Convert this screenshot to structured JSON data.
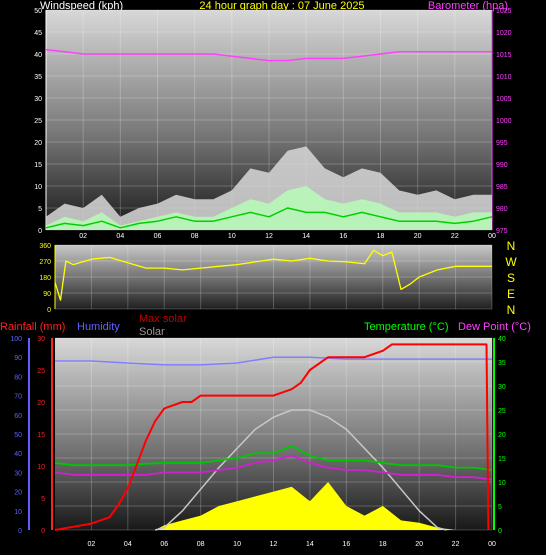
{
  "header": {
    "title": "24 hour graph day : 07 June 2025",
    "left_label": "Windspeed (kph)",
    "right_label": "Barometer (hpa)"
  },
  "colors": {
    "wind": "#ffffff",
    "gust": "#d8d8d8",
    "avg_wind": "#00d000",
    "barometer": "#ff40ff",
    "direction": "#ffff00",
    "rain": "#ff0000",
    "humidity": "#8080ff",
    "max_solar": "#c8c8c8",
    "solar": "#ffff00",
    "temperature": "#00c800",
    "dewpoint": "#d020d0",
    "axis_red": "#ff2020",
    "axis_blue": "#6060ff",
    "axis_green": "#00ff00"
  },
  "compass": {
    "letters": [
      "N",
      "W",
      "S",
      "E",
      "N"
    ]
  },
  "bottom_labels": {
    "rain": "Rainfall (mm)",
    "humidity": "Humidity",
    "max_solar": "Max solar",
    "solar": "Solar",
    "temperature": "Temperature (°C)",
    "dewpoint": "Dew Point (°C)"
  },
  "chart_data": [
    {
      "id": "wind_baro",
      "type": "line",
      "title": "24 hour graph day : 07 June 2025",
      "ylabel": "Windspeed (kph)",
      "y2label": "Barometer (hpa)",
      "ylim": [
        0,
        50
      ],
      "y2lim": [
        975,
        1025
      ],
      "yticks": [
        0,
        5,
        10,
        15,
        20,
        25,
        30,
        35,
        40,
        45,
        50
      ],
      "y2ticks": [
        975,
        980,
        985,
        990,
        995,
        1000,
        1005,
        1010,
        1015,
        1020,
        1025
      ],
      "xticks": [
        "02",
        "04",
        "06",
        "08",
        "10",
        "12",
        "14",
        "16",
        "18",
        "20",
        "22",
        "00"
      ],
      "grid": true,
      "series": [
        {
          "name": "Barometer",
          "axis": "right",
          "x": [
            0,
            1,
            2,
            3,
            4,
            5,
            6,
            7,
            8,
            9,
            10,
            11,
            12,
            13,
            14,
            15,
            16,
            17,
            18,
            19,
            20,
            21,
            22,
            23,
            24
          ],
          "values": [
            1016,
            1015.5,
            1015,
            1015,
            1015,
            1015,
            1015,
            1015,
            1015,
            1015,
            1014.5,
            1014,
            1013.5,
            1013.5,
            1014,
            1014,
            1014,
            1014.5,
            1015,
            1015.5,
            1015.5,
            1015.5,
            1015.5,
            1015.5,
            1015.5
          ]
        },
        {
          "name": "Gust",
          "axis": "left",
          "x": [
            0,
            1,
            2,
            3,
            4,
            5,
            6,
            7,
            8,
            9,
            10,
            11,
            12,
            13,
            14,
            15,
            16,
            17,
            18,
            19,
            20,
            21,
            22,
            23,
            24
          ],
          "values": [
            3,
            6,
            5,
            8,
            3,
            5,
            6,
            8,
            7,
            7,
            9,
            14,
            13,
            18,
            19,
            14,
            12,
            14,
            13,
            9,
            8,
            9,
            7,
            8,
            8
          ]
        },
        {
          "name": "Wind",
          "axis": "left",
          "x": [
            0,
            1,
            2,
            3,
            4,
            5,
            6,
            7,
            8,
            9,
            10,
            11,
            12,
            13,
            14,
            15,
            16,
            17,
            18,
            19,
            20,
            21,
            22,
            23,
            24
          ],
          "values": [
            1,
            3,
            2,
            4,
            1,
            2,
            3,
            4,
            3,
            3,
            5,
            7,
            6,
            9,
            10,
            7,
            6,
            7,
            6,
            4,
            4,
            4,
            3,
            4,
            4
          ]
        },
        {
          "name": "Average",
          "axis": "left",
          "x": [
            0,
            1,
            2,
            3,
            4,
            5,
            6,
            7,
            8,
            9,
            10,
            11,
            12,
            13,
            14,
            15,
            16,
            17,
            18,
            19,
            20,
            21,
            22,
            23,
            24
          ],
          "values": [
            0.5,
            1.5,
            1,
            2,
            0.5,
            1.5,
            2,
            3,
            2,
            2,
            3,
            4,
            3,
            5,
            4,
            4,
            3,
            4,
            3,
            2,
            2,
            2,
            1.5,
            2,
            3
          ]
        }
      ]
    },
    {
      "id": "direction",
      "type": "line",
      "ylim": [
        0,
        360
      ],
      "yticks": [
        0,
        90,
        180,
        270,
        360
      ],
      "grid": true,
      "series": [
        {
          "name": "Wind direction",
          "x": [
            0,
            0.3,
            0.6,
            1,
            2,
            3,
            4,
            5,
            6,
            7,
            8,
            9,
            10,
            11,
            12,
            13,
            14,
            15,
            16,
            17,
            17.5,
            18,
            18.5,
            19,
            19.5,
            20,
            21,
            22,
            23,
            24
          ],
          "values": [
            150,
            50,
            270,
            250,
            280,
            290,
            260,
            230,
            230,
            220,
            230,
            240,
            250,
            265,
            280,
            270,
            285,
            270,
            265,
            255,
            330,
            300,
            320,
            110,
            140,
            180,
            220,
            240,
            240,
            240
          ]
        }
      ]
    },
    {
      "id": "temp_rain_solar",
      "type": "line",
      "ylabel": "Rainfall (mm)",
      "y2label": "Temperature (°C)",
      "ylim": [
        0,
        30
      ],
      "yticks": [
        0,
        5,
        10,
        15,
        20,
        25,
        30
      ],
      "humidity_ticks": [
        0,
        10,
        20,
        30,
        40,
        50,
        60,
        70,
        80,
        90,
        100
      ],
      "y2lim": [
        0,
        40
      ],
      "y2ticks": [
        0,
        5,
        10,
        15,
        20,
        25,
        30,
        35,
        40
      ],
      "xticks": [
        "02",
        "04",
        "06",
        "08",
        "10",
        "12",
        "14",
        "16",
        "18",
        "20",
        "22",
        "00"
      ],
      "grid": true,
      "series": [
        {
          "name": "Rainfall",
          "axis": "rain",
          "x": [
            0,
            1,
            2,
            3,
            3.5,
            4,
            5,
            5.5,
            6,
            7,
            7.5,
            8,
            9,
            10,
            11,
            12,
            13,
            13.5,
            14,
            15,
            15.5,
            16,
            17,
            18,
            18.5,
            19,
            20,
            21,
            22,
            23,
            23.7,
            23.8
          ],
          "values": [
            0,
            0.5,
            1,
            2,
            4,
            6.5,
            14,
            17,
            19,
            20,
            20,
            21,
            21,
            21,
            21,
            21,
            22,
            23,
            25,
            27,
            27,
            27,
            27,
            28,
            29,
            29,
            29,
            29,
            29,
            29,
            29,
            0
          ]
        },
        {
          "name": "Humidity",
          "axis": "humidity",
          "x": [
            0,
            2,
            4,
            6,
            8,
            10,
            12,
            14,
            16,
            18,
            20,
            22,
            24
          ],
          "values": [
            88,
            88,
            87,
            86,
            86,
            87,
            90,
            90,
            89,
            89,
            89,
            89,
            89
          ]
        },
        {
          "name": "Max solar",
          "axis": "temp",
          "x": [
            5.5,
            6,
            7,
            8,
            9,
            10,
            11,
            12,
            13,
            14,
            15,
            16,
            17,
            18,
            19,
            20,
            21,
            21.5
          ],
          "values": [
            0,
            0.5,
            4,
            8.5,
            13,
            17,
            21,
            23.5,
            25,
            25,
            23.5,
            21,
            17,
            13,
            8.5,
            4,
            0.5,
            0
          ]
        },
        {
          "name": "Solar",
          "axis": "temp",
          "x": [
            0,
            5.5,
            6,
            7,
            8,
            9,
            10,
            11,
            12,
            13,
            14,
            15,
            16,
            17,
            18,
            19,
            20,
            21,
            22,
            24
          ],
          "values": [
            0,
            0,
            1,
            2,
            3,
            5,
            6,
            7,
            8,
            9,
            6,
            10,
            5,
            3,
            5,
            2,
            1.5,
            0.5,
            0,
            0
          ]
        },
        {
          "name": "Temperature",
          "axis": "temp",
          "x": [
            0,
            1,
            2,
            3,
            4,
            5,
            6,
            7,
            8,
            9,
            10,
            11,
            12,
            13,
            14,
            15,
            16,
            17,
            18,
            19,
            20,
            21,
            22,
            23,
            24
          ],
          "values": [
            14,
            13.5,
            13.5,
            13.5,
            13.5,
            13.8,
            14,
            14,
            14,
            14.5,
            15,
            16,
            16,
            17.5,
            15.5,
            14.5,
            14.5,
            14.5,
            14,
            13.5,
            13.5,
            13.5,
            13,
            13,
            12.5
          ]
        },
        {
          "name": "Dew Point",
          "axis": "temp",
          "x": [
            0,
            1,
            2,
            3,
            4,
            5,
            6,
            7,
            8,
            9,
            10,
            11,
            12,
            13,
            14,
            15,
            16,
            17,
            18,
            19,
            20,
            21,
            22,
            23,
            24
          ],
          "values": [
            12,
            11.5,
            11.5,
            11.5,
            11.5,
            11.5,
            12,
            12,
            12,
            12.5,
            13,
            14,
            14.5,
            15.5,
            14,
            13,
            12.5,
            12.5,
            12,
            11.5,
            11.5,
            11.5,
            11,
            11,
            10.5
          ]
        }
      ]
    }
  ]
}
